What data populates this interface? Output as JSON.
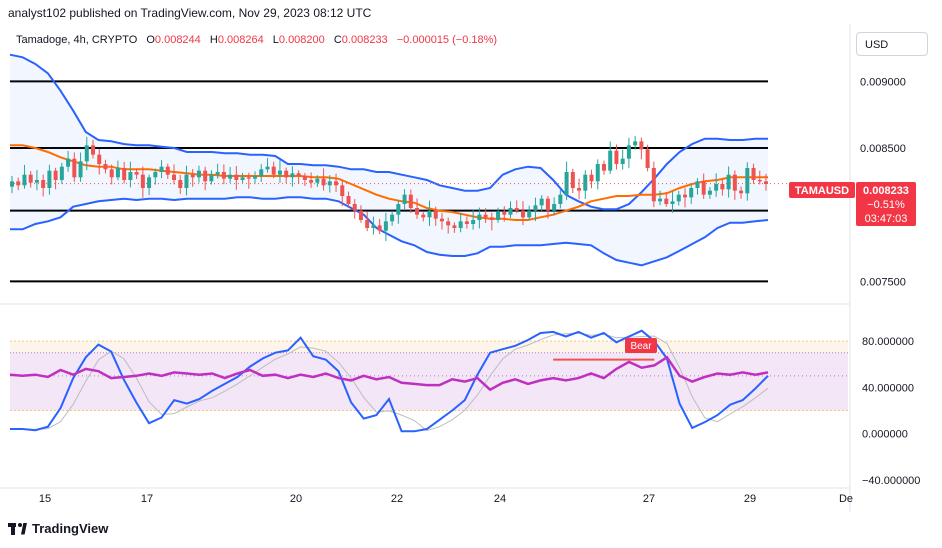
{
  "header": {
    "published": "analyst102 published on TradingView.com, Nov 29, 2023 08:12 UTC"
  },
  "legend": {
    "symbol": "Tamadoge, 4h, CRYPTO",
    "open_label": "O",
    "open": "0.008244",
    "high_label": "H",
    "high": "0.008264",
    "low_label": "L",
    "low": "0.008200",
    "close_label": "C",
    "close": "0.008233",
    "change": "−0.000015 (−0.18%)"
  },
  "currency_button": "USD",
  "price_badge": {
    "ticker": "TAMAUSD",
    "price": "0.008233",
    "change_pct": "−0.51%",
    "countdown": "03:47:03"
  },
  "brand": "TradingView",
  "colors": {
    "bull": "#26a69a",
    "bear": "#ef5350",
    "bollinger": "#2962ff",
    "basis": "#ff6d00",
    "stoch_k": "#2962ff",
    "rsi": "#c030c0",
    "band_fill": "#f3e6f7",
    "bear_label": "#f23645"
  },
  "chart_data": [
    {
      "type": "candlestick",
      "symbol": "TAMAUSD",
      "timeframe": "4h",
      "y_ticks": [
        "0.009000",
        "0.008500",
        "0.007500"
      ],
      "ylim": [
        0.00736,
        0.00919
      ],
      "x_ticks": [
        "15",
        "17",
        "20",
        "22",
        "24",
        "27",
        "29",
        "De"
      ],
      "horizontal_levels": [
        0.009,
        0.0085,
        0.00803,
        0.0075
      ],
      "current_price": 0.008233,
      "closes": [
        0.00825,
        0.00822,
        0.0083,
        0.00824,
        0.00826,
        0.0082,
        0.00833,
        0.00826,
        0.00836,
        0.00842,
        0.00828,
        0.0084,
        0.00852,
        0.00845,
        0.00838,
        0.00834,
        0.00828,
        0.00835,
        0.00826,
        0.00832,
        0.0083,
        0.0082,
        0.00828,
        0.00832,
        0.00836,
        0.0083,
        0.00826,
        0.0082,
        0.0083,
        0.00828,
        0.00833,
        0.00825,
        0.0083,
        0.00832,
        0.00827,
        0.0083,
        0.00826,
        0.00828,
        0.00827,
        0.00829,
        0.00834,
        0.00836,
        0.0083,
        0.00833,
        0.00828,
        0.00831,
        0.00829,
        0.00826,
        0.00824,
        0.00827,
        0.00822,
        0.00825,
        0.00822,
        0.00814,
        0.00808,
        0.00803,
        0.00796,
        0.0079,
        0.00792,
        0.00788,
        0.00795,
        0.008,
        0.00808,
        0.00815,
        0.00805,
        0.008,
        0.00798,
        0.00803,
        0.00797,
        0.00795,
        0.00792,
        0.0079,
        0.00795,
        0.00793,
        0.00796,
        0.008,
        0.00798,
        0.00796,
        0.00802,
        0.008,
        0.00805,
        0.00803,
        0.00798,
        0.00803,
        0.00807,
        0.00812,
        0.00803,
        0.00808,
        0.00815,
        0.00832,
        0.0082,
        0.00818,
        0.0083,
        0.00825,
        0.00838,
        0.00833,
        0.00848,
        0.00838,
        0.00842,
        0.00852,
        0.00855,
        0.00849,
        0.00835,
        0.0081,
        0.00812,
        0.00808,
        0.0081,
        0.00815,
        0.00813,
        0.0082,
        0.00825,
        0.00815,
        0.00818,
        0.00823,
        0.00819,
        0.0083,
        0.00818,
        0.00816,
        0.00835,
        0.00826,
        0.00825,
        0.00823
      ],
      "series": [
        {
          "name": "Upper Bollinger Band",
          "values": [
            0.0092,
            0.00918,
            0.00913,
            0.00906,
            0.00893,
            0.00878,
            0.00862,
            0.00856,
            0.00855,
            0.00853,
            0.00852,
            0.00852,
            0.00851,
            0.0085,
            0.00847,
            0.00847,
            0.00847,
            0.00846,
            0.00846,
            0.00845,
            0.00845,
            0.00844,
            0.00838,
            0.00838,
            0.00837,
            0.00837,
            0.00836,
            0.00834,
            0.00834,
            0.00832,
            0.00832,
            0.0083,
            0.00828,
            0.00826,
            0.00822,
            0.0082,
            0.00818,
            0.00818,
            0.0082,
            0.0083,
            0.00834,
            0.00836,
            0.00835,
            0.00826,
            0.00815,
            0.0081,
            0.00806,
            0.00804,
            0.00804,
            0.00808,
            0.00817,
            0.00827,
            0.00838,
            0.00847,
            0.00853,
            0.00857,
            0.00857,
            0.00856,
            0.00856,
            0.00857,
            0.00857
          ]
        },
        {
          "name": "Bollinger Basis",
          "values": [
            0.00852,
            0.00852,
            0.0085,
            0.00847,
            0.00843,
            0.0084,
            0.00837,
            0.00836,
            0.00836,
            0.00834,
            0.00834,
            0.00834,
            0.00833,
            0.00832,
            0.00831,
            0.0083,
            0.0083,
            0.00829,
            0.00829,
            0.00829,
            0.00829,
            0.00829,
            0.00829,
            0.00829,
            0.00828,
            0.00828,
            0.00827,
            0.00823,
            0.00819,
            0.00815,
            0.00812,
            0.0081,
            0.00809,
            0.00805,
            0.00803,
            0.00802,
            0.008,
            0.00798,
            0.00797,
            0.00797,
            0.00796,
            0.00796,
            0.00798,
            0.008,
            0.00803,
            0.00806,
            0.0081,
            0.00812,
            0.00814,
            0.00814,
            0.00815,
            0.00815,
            0.00816,
            0.0082,
            0.00823,
            0.00825,
            0.00826,
            0.00828,
            0.00828,
            0.00828,
            0.00828
          ]
        },
        {
          "name": "Lower Bollinger Band",
          "values": [
            0.00789,
            0.00789,
            0.00793,
            0.00795,
            0.00798,
            0.00806,
            0.00808,
            0.0081,
            0.00811,
            0.00812,
            0.00811,
            0.00812,
            0.00812,
            0.00811,
            0.00812,
            0.00812,
            0.00812,
            0.00812,
            0.00813,
            0.00813,
            0.00812,
            0.00812,
            0.00813,
            0.00813,
            0.00812,
            0.00812,
            0.0081,
            0.00805,
            0.008,
            0.0079,
            0.00785,
            0.0078,
            0.00777,
            0.00772,
            0.0077,
            0.00769,
            0.00769,
            0.00771,
            0.00776,
            0.00776,
            0.00777,
            0.00777,
            0.00777,
            0.00778,
            0.00779,
            0.00778,
            0.00777,
            0.00771,
            0.00766,
            0.00764,
            0.00762,
            0.00765,
            0.00768,
            0.00773,
            0.00778,
            0.00783,
            0.0079,
            0.00794,
            0.00794,
            0.00795,
            0.00796
          ]
        }
      ]
    },
    {
      "type": "line",
      "y_ticks": [
        "80.000000",
        "40.000000",
        "0.000000",
        "−40.000000"
      ],
      "ylim": [
        -47,
        100
      ],
      "bands": [
        20,
        50,
        70,
        80
      ],
      "annotation": "Bear",
      "series": [
        {
          "name": "Stochastic %K",
          "values": [
            4,
            4,
            3,
            6,
            22,
            48,
            66,
            77,
            71,
            47,
            27,
            9,
            14,
            29,
            26,
            30,
            37,
            43,
            49,
            58,
            65,
            70,
            72,
            83,
            67,
            64,
            54,
            27,
            13,
            16,
            30,
            2,
            2,
            4,
            12,
            20,
            29,
            51,
            70,
            73,
            76,
            81,
            87,
            88,
            84,
            88,
            83,
            87,
            79,
            84,
            89,
            80,
            65,
            26,
            5,
            10,
            16,
            25,
            29,
            39,
            50
          ]
        },
        {
          "name": "RSI",
          "values": [
            51,
            50,
            51,
            49,
            55,
            51,
            56,
            54,
            48,
            49,
            50,
            52,
            50,
            53,
            52,
            51,
            52,
            48,
            52,
            55,
            50,
            51,
            48,
            51,
            49,
            52,
            48,
            46,
            50,
            47,
            49,
            44,
            43,
            42,
            42,
            47,
            45,
            48,
            38,
            44,
            47,
            43,
            46,
            48,
            46,
            48,
            52,
            48,
            56,
            62,
            57,
            59,
            66,
            50,
            45,
            49,
            52,
            51,
            53,
            51,
            53
          ]
        },
        {
          "name": "RSI Divergence",
          "values": [
            64,
            64
          ]
        }
      ]
    }
  ]
}
